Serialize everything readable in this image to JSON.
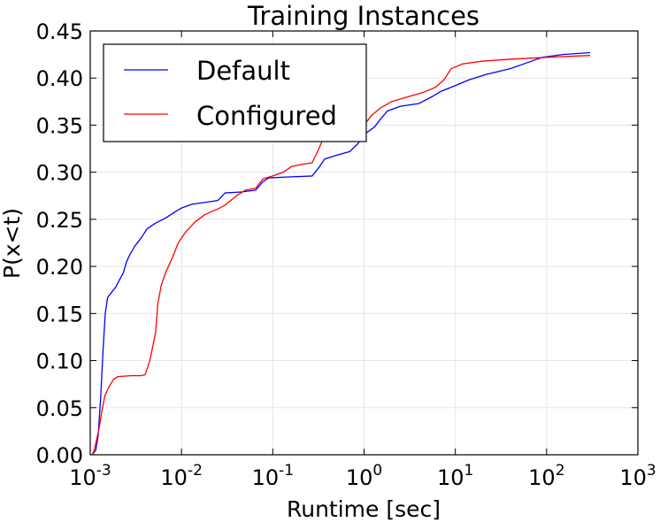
{
  "chart_data": {
    "type": "line",
    "title": "Training Instances",
    "xlabel": "Runtime [sec]",
    "ylabel": "P(x<t)",
    "xscale": "log",
    "xlim": [
      0.001,
      1000
    ],
    "ylim": [
      0,
      0.45
    ],
    "grid": true,
    "legend_position": "top-left",
    "x_ticks": [
      {
        "value": 0.001,
        "base": "10",
        "exp": "-3"
      },
      {
        "value": 0.01,
        "base": "10",
        "exp": "-2"
      },
      {
        "value": 0.1,
        "base": "10",
        "exp": "-1"
      },
      {
        "value": 1,
        "base": "10",
        "exp": "0"
      },
      {
        "value": 10,
        "base": "10",
        "exp": "1"
      },
      {
        "value": 100,
        "base": "10",
        "exp": "2"
      },
      {
        "value": 1000,
        "base": "10",
        "exp": "3"
      }
    ],
    "y_ticks": [
      {
        "value": 0.0,
        "label": "0.00"
      },
      {
        "value": 0.05,
        "label": "0.05"
      },
      {
        "value": 0.1,
        "label": "0.10"
      },
      {
        "value": 0.15,
        "label": "0.15"
      },
      {
        "value": 0.2,
        "label": "0.20"
      },
      {
        "value": 0.25,
        "label": "0.25"
      },
      {
        "value": 0.3,
        "label": "0.30"
      },
      {
        "value": 0.35,
        "label": "0.35"
      },
      {
        "value": 0.4,
        "label": "0.40"
      },
      {
        "value": 0.45,
        "label": "0.45"
      }
    ],
    "series": [
      {
        "name": "Default",
        "color": "#0000ff",
        "points": [
          [
            0.00105,
            0.0
          ],
          [
            0.00115,
            0.005
          ],
          [
            0.00122,
            0.02
          ],
          [
            0.0013,
            0.06
          ],
          [
            0.00138,
            0.11
          ],
          [
            0.00146,
            0.15
          ],
          [
            0.00155,
            0.167
          ],
          [
            0.0017,
            0.172
          ],
          [
            0.0019,
            0.178
          ],
          [
            0.0021,
            0.186
          ],
          [
            0.0023,
            0.193
          ],
          [
            0.0025,
            0.205
          ],
          [
            0.0027,
            0.212
          ],
          [
            0.0031,
            0.222
          ],
          [
            0.0036,
            0.23
          ],
          [
            0.0042,
            0.24
          ],
          [
            0.0052,
            0.246
          ],
          [
            0.0066,
            0.251
          ],
          [
            0.0082,
            0.257
          ],
          [
            0.01,
            0.262
          ],
          [
            0.013,
            0.266
          ],
          [
            0.018,
            0.268
          ],
          [
            0.025,
            0.27
          ],
          [
            0.03,
            0.278
          ],
          [
            0.045,
            0.279
          ],
          [
            0.065,
            0.281
          ],
          [
            0.078,
            0.29
          ],
          [
            0.09,
            0.294
          ],
          [
            0.15,
            0.295
          ],
          [
            0.27,
            0.296
          ],
          [
            0.32,
            0.305
          ],
          [
            0.37,
            0.314
          ],
          [
            0.5,
            0.318
          ],
          [
            0.7,
            0.322
          ],
          [
            0.85,
            0.33
          ],
          [
            1.0,
            0.34
          ],
          [
            1.3,
            0.348
          ],
          [
            1.5,
            0.356
          ],
          [
            1.8,
            0.365
          ],
          [
            2.5,
            0.37
          ],
          [
            4.0,
            0.373
          ],
          [
            5.5,
            0.38
          ],
          [
            7.0,
            0.386
          ],
          [
            10.0,
            0.392
          ],
          [
            14.0,
            0.398
          ],
          [
            22.0,
            0.404
          ],
          [
            40.0,
            0.41
          ],
          [
            60.0,
            0.416
          ],
          [
            90.0,
            0.422
          ],
          [
            150.0,
            0.425
          ],
          [
            300.0,
            0.427
          ]
        ]
      },
      {
        "name": "Configured",
        "color": "#ff0000",
        "points": [
          [
            0.00105,
            0.0
          ],
          [
            0.0011,
            0.004
          ],
          [
            0.00115,
            0.012
          ],
          [
            0.00125,
            0.028
          ],
          [
            0.00135,
            0.048
          ],
          [
            0.00145,
            0.063
          ],
          [
            0.0016,
            0.072
          ],
          [
            0.0018,
            0.08
          ],
          [
            0.002,
            0.083
          ],
          [
            0.0028,
            0.084
          ],
          [
            0.0036,
            0.084
          ],
          [
            0.004,
            0.085
          ],
          [
            0.0045,
            0.1
          ],
          [
            0.0052,
            0.13
          ],
          [
            0.0055,
            0.16
          ],
          [
            0.006,
            0.18
          ],
          [
            0.0068,
            0.195
          ],
          [
            0.008,
            0.21
          ],
          [
            0.0092,
            0.225
          ],
          [
            0.011,
            0.236
          ],
          [
            0.014,
            0.247
          ],
          [
            0.018,
            0.255
          ],
          [
            0.025,
            0.261
          ],
          [
            0.03,
            0.265
          ],
          [
            0.04,
            0.275
          ],
          [
            0.05,
            0.281
          ],
          [
            0.065,
            0.283
          ],
          [
            0.078,
            0.293
          ],
          [
            0.1,
            0.296
          ],
          [
            0.13,
            0.3
          ],
          [
            0.16,
            0.306
          ],
          [
            0.2,
            0.308
          ],
          [
            0.27,
            0.31
          ],
          [
            0.32,
            0.325
          ],
          [
            0.35,
            0.334
          ],
          [
            0.45,
            0.338
          ],
          [
            0.65,
            0.343
          ],
          [
            0.8,
            0.348
          ],
          [
            1.0,
            0.35
          ],
          [
            1.2,
            0.36
          ],
          [
            1.5,
            0.368
          ],
          [
            2.0,
            0.375
          ],
          [
            3.0,
            0.38
          ],
          [
            4.5,
            0.385
          ],
          [
            6.0,
            0.39
          ],
          [
            7.5,
            0.398
          ],
          [
            9.0,
            0.41
          ],
          [
            12.0,
            0.415
          ],
          [
            20.0,
            0.418
          ],
          [
            40.0,
            0.42
          ],
          [
            100.0,
            0.422
          ],
          [
            300.0,
            0.424
          ]
        ]
      }
    ]
  }
}
